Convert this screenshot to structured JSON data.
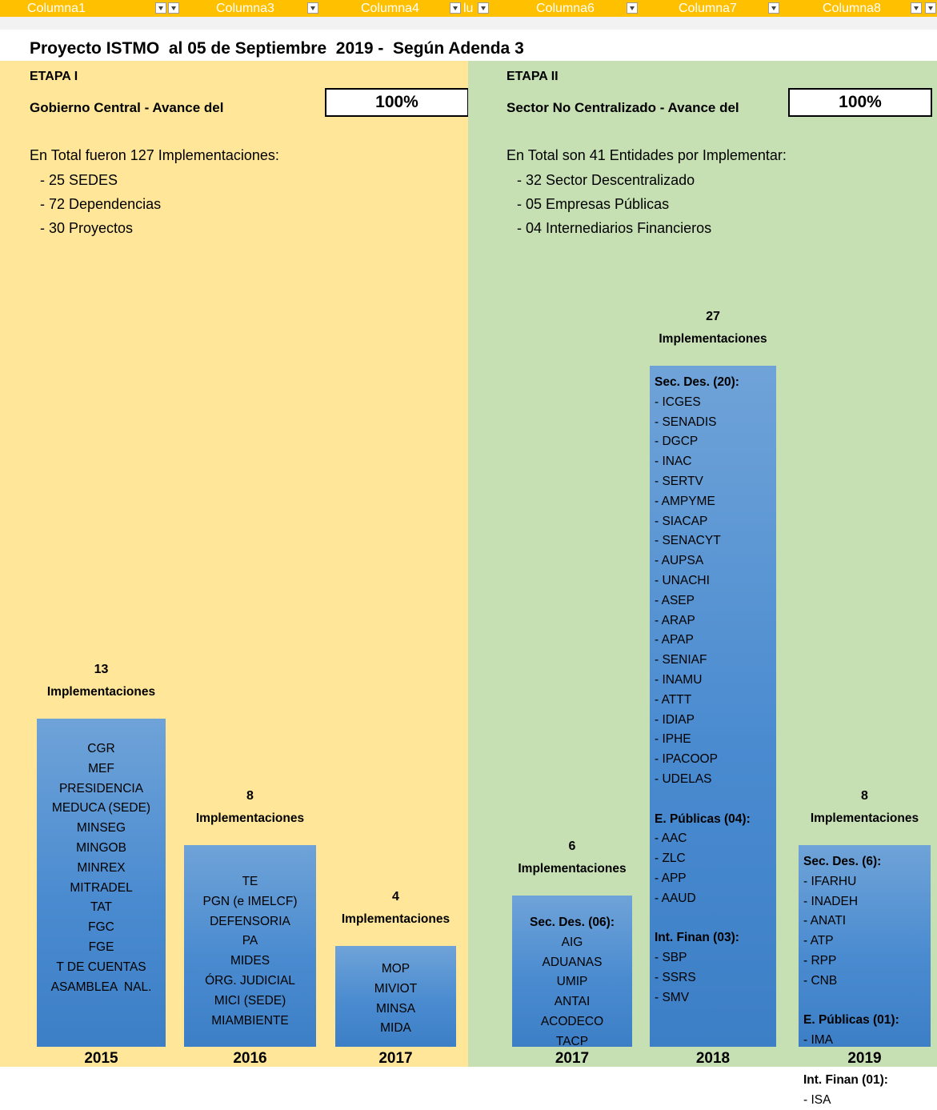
{
  "header": {
    "columns": [
      "Columna1",
      "Columna3",
      "Columna4",
      "lu",
      "Columna6",
      "Columna7",
      "Columna8"
    ]
  },
  "title": "Proyecto ISTMO  al 05 de Septiembre  2019 -  Según Adenda 3",
  "etapa1": {
    "label": "ETAPA I",
    "avance_label": "Gobierno Central - Avance del",
    "avance_value": "100%",
    "total_text": "En Total fueron 127 Implementaciones:",
    "items": [
      "- 25 SEDES",
      "- 72 Dependencias",
      "- 30 Proyectos"
    ]
  },
  "etapa2": {
    "label": "ETAPA II",
    "avance_label": "Sector No Centralizado - Avance del",
    "avance_value": "100%",
    "total_text": "En Total son 41 Entidades por Implementar:",
    "items": [
      "- 32 Sector Descentralizado",
      "- 05 Empresas Públicas",
      "- 04 Internediarios Financieros"
    ]
  },
  "chart_data": {
    "type": "bar",
    "panels": [
      "ETAPA I",
      "ETAPA II"
    ],
    "unit_label": "Implementaciones",
    "bars": [
      {
        "panel": "ETAPA I",
        "year": "2015",
        "value": 13,
        "entities": [
          "CGR",
          "MEF",
          "PRESIDENCIA",
          "MEDUCA (SEDE)",
          "MINSEG",
          "MINGOB",
          "MINREX",
          "MITRADEL",
          "TAT",
          "FGC",
          "FGE",
          "T DE CUENTAS",
          "ASAMBLEA  NAL."
        ]
      },
      {
        "panel": "ETAPA I",
        "year": "2016",
        "value": 8,
        "entities": [
          "TE",
          "PGN (e IMELCF)",
          "DEFENSORIA",
          "PA",
          "MIDES",
          "ÓRG. JUDICIAL",
          "MICI (SEDE)",
          "MIAMBIENTE"
        ]
      },
      {
        "panel": "ETAPA I",
        "year": "2017",
        "value": 4,
        "entities": [
          "MOP",
          "MIVIOT",
          "MINSA",
          "MIDA"
        ]
      },
      {
        "panel": "ETAPA II",
        "year": "2017",
        "value": 6,
        "groups": [
          {
            "heading": "Sec. Des. (06):",
            "entities": [
              "AIG",
              "ADUANAS",
              "UMIP",
              "ANTAI",
              "ACODECO",
              "TACP"
            ]
          }
        ]
      },
      {
        "panel": "ETAPA II",
        "year": "2018",
        "value": 27,
        "groups": [
          {
            "heading": "Sec. Des. (20):",
            "entities": [
              "- ICGES",
              "- SENADIS",
              "- DGCP",
              "- INAC",
              "- SERTV",
              "- AMPYME",
              "- SIACAP",
              "- SENACYT",
              "- AUPSA",
              "- UNACHI",
              "- ASEP",
              "- ARAP",
              "- APAP",
              "- SENIAF",
              "- INAMU",
              "- ATTT",
              "- IDIAP",
              "- IPHE",
              "- IPACOOP",
              "- UDELAS"
            ]
          },
          {
            "heading": "E. Públicas (04):",
            "entities": [
              "- AAC",
              "- ZLC",
              "- APP",
              "- AAUD"
            ]
          },
          {
            "heading": "Int. Finan (03):",
            "entities": [
              "- SBP",
              "- SSRS",
              "- SMV"
            ]
          }
        ]
      },
      {
        "panel": "ETAPA II",
        "year": "2019",
        "value": 8,
        "groups": [
          {
            "heading": "Sec. Des. (6):",
            "entities": [
              "- IFARHU",
              "- INADEH",
              "- ANATI",
              "- ATP",
              "- RPP",
              "- CNB"
            ]
          },
          {
            "heading": "E. Públicas (01):",
            "entities": [
              "- IMA"
            ]
          },
          {
            "heading": "Int. Finan (01):",
            "entities": [
              "- ISA"
            ]
          }
        ]
      }
    ]
  }
}
